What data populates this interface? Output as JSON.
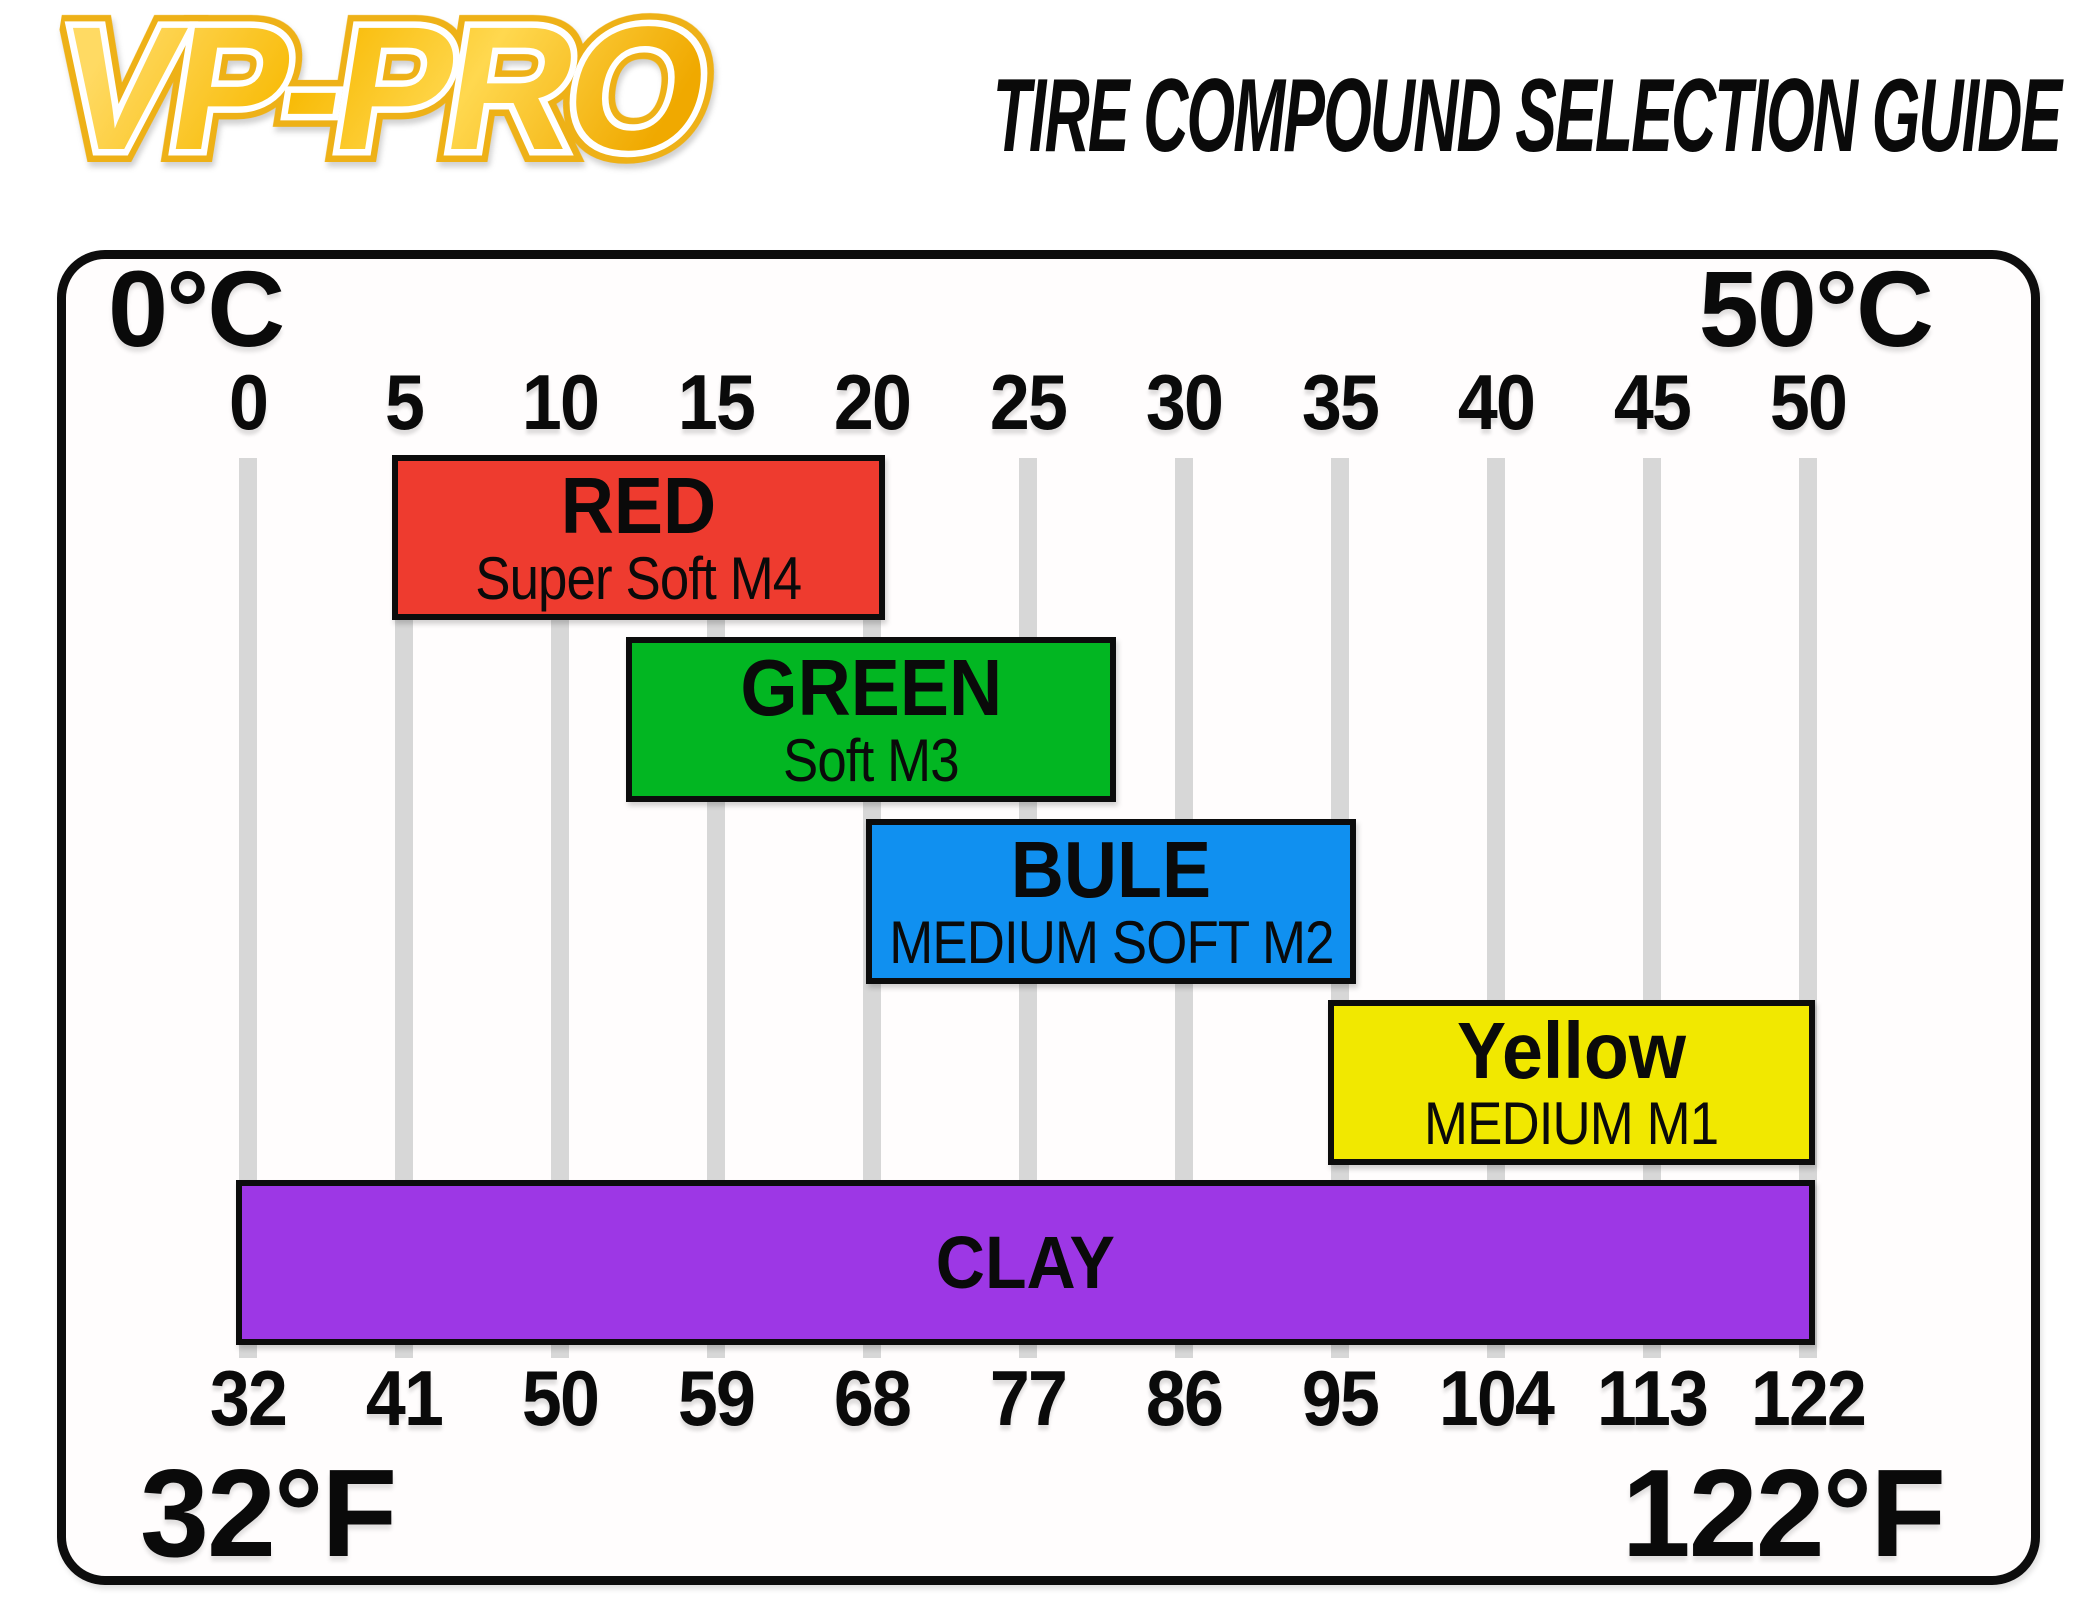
{
  "header": {
    "logo_text": "VP-PRO",
    "title": "TIRE COMPOUND SELECTION GUIDE"
  },
  "chart_data": {
    "type": "bar",
    "subtype": "horizontal-range-gantt",
    "title": "TIRE COMPOUND SELECTION GUIDE",
    "axis_top": {
      "unit": "celsius",
      "min_label": "0°C",
      "max_label": "50°C",
      "ticks": [
        "0",
        "5",
        "10",
        "15",
        "20",
        "25",
        "30",
        "35",
        "40",
        "45",
        "50"
      ]
    },
    "axis_bottom": {
      "unit": "fahrenheit",
      "min_label": "32°F",
      "max_label": "122°F",
      "ticks": [
        "32",
        "41",
        "50",
        "59",
        "68",
        "77",
        "86",
        "95",
        "104",
        "113",
        "122"
      ]
    },
    "axis_range_c": [
      0,
      50
    ],
    "grid": true,
    "gridline_color": "#d7d7d7",
    "bars": [
      {
        "label": "RED",
        "sublabel": "Super Soft M4",
        "range_c": [
          4.6,
          20.4
        ],
        "color": "#ee3b2f"
      },
      {
        "label": "GREEN",
        "sublabel": "Soft M3",
        "range_c": [
          12.1,
          27.8
        ],
        "color": "#02b622"
      },
      {
        "label": "BULE",
        "sublabel": "MEDIUM SOFT M2",
        "range_c": [
          19.8,
          35.5
        ],
        "color": "#1090f0"
      },
      {
        "label": "Yellow",
        "sublabel": "MEDIUM M1",
        "range_c": [
          34.6,
          50.2
        ],
        "color": "#f1e800"
      },
      {
        "label": "CLAY",
        "sublabel": "",
        "range_c": [
          -0.4,
          50.2
        ],
        "color": "#9d37e5"
      }
    ]
  }
}
